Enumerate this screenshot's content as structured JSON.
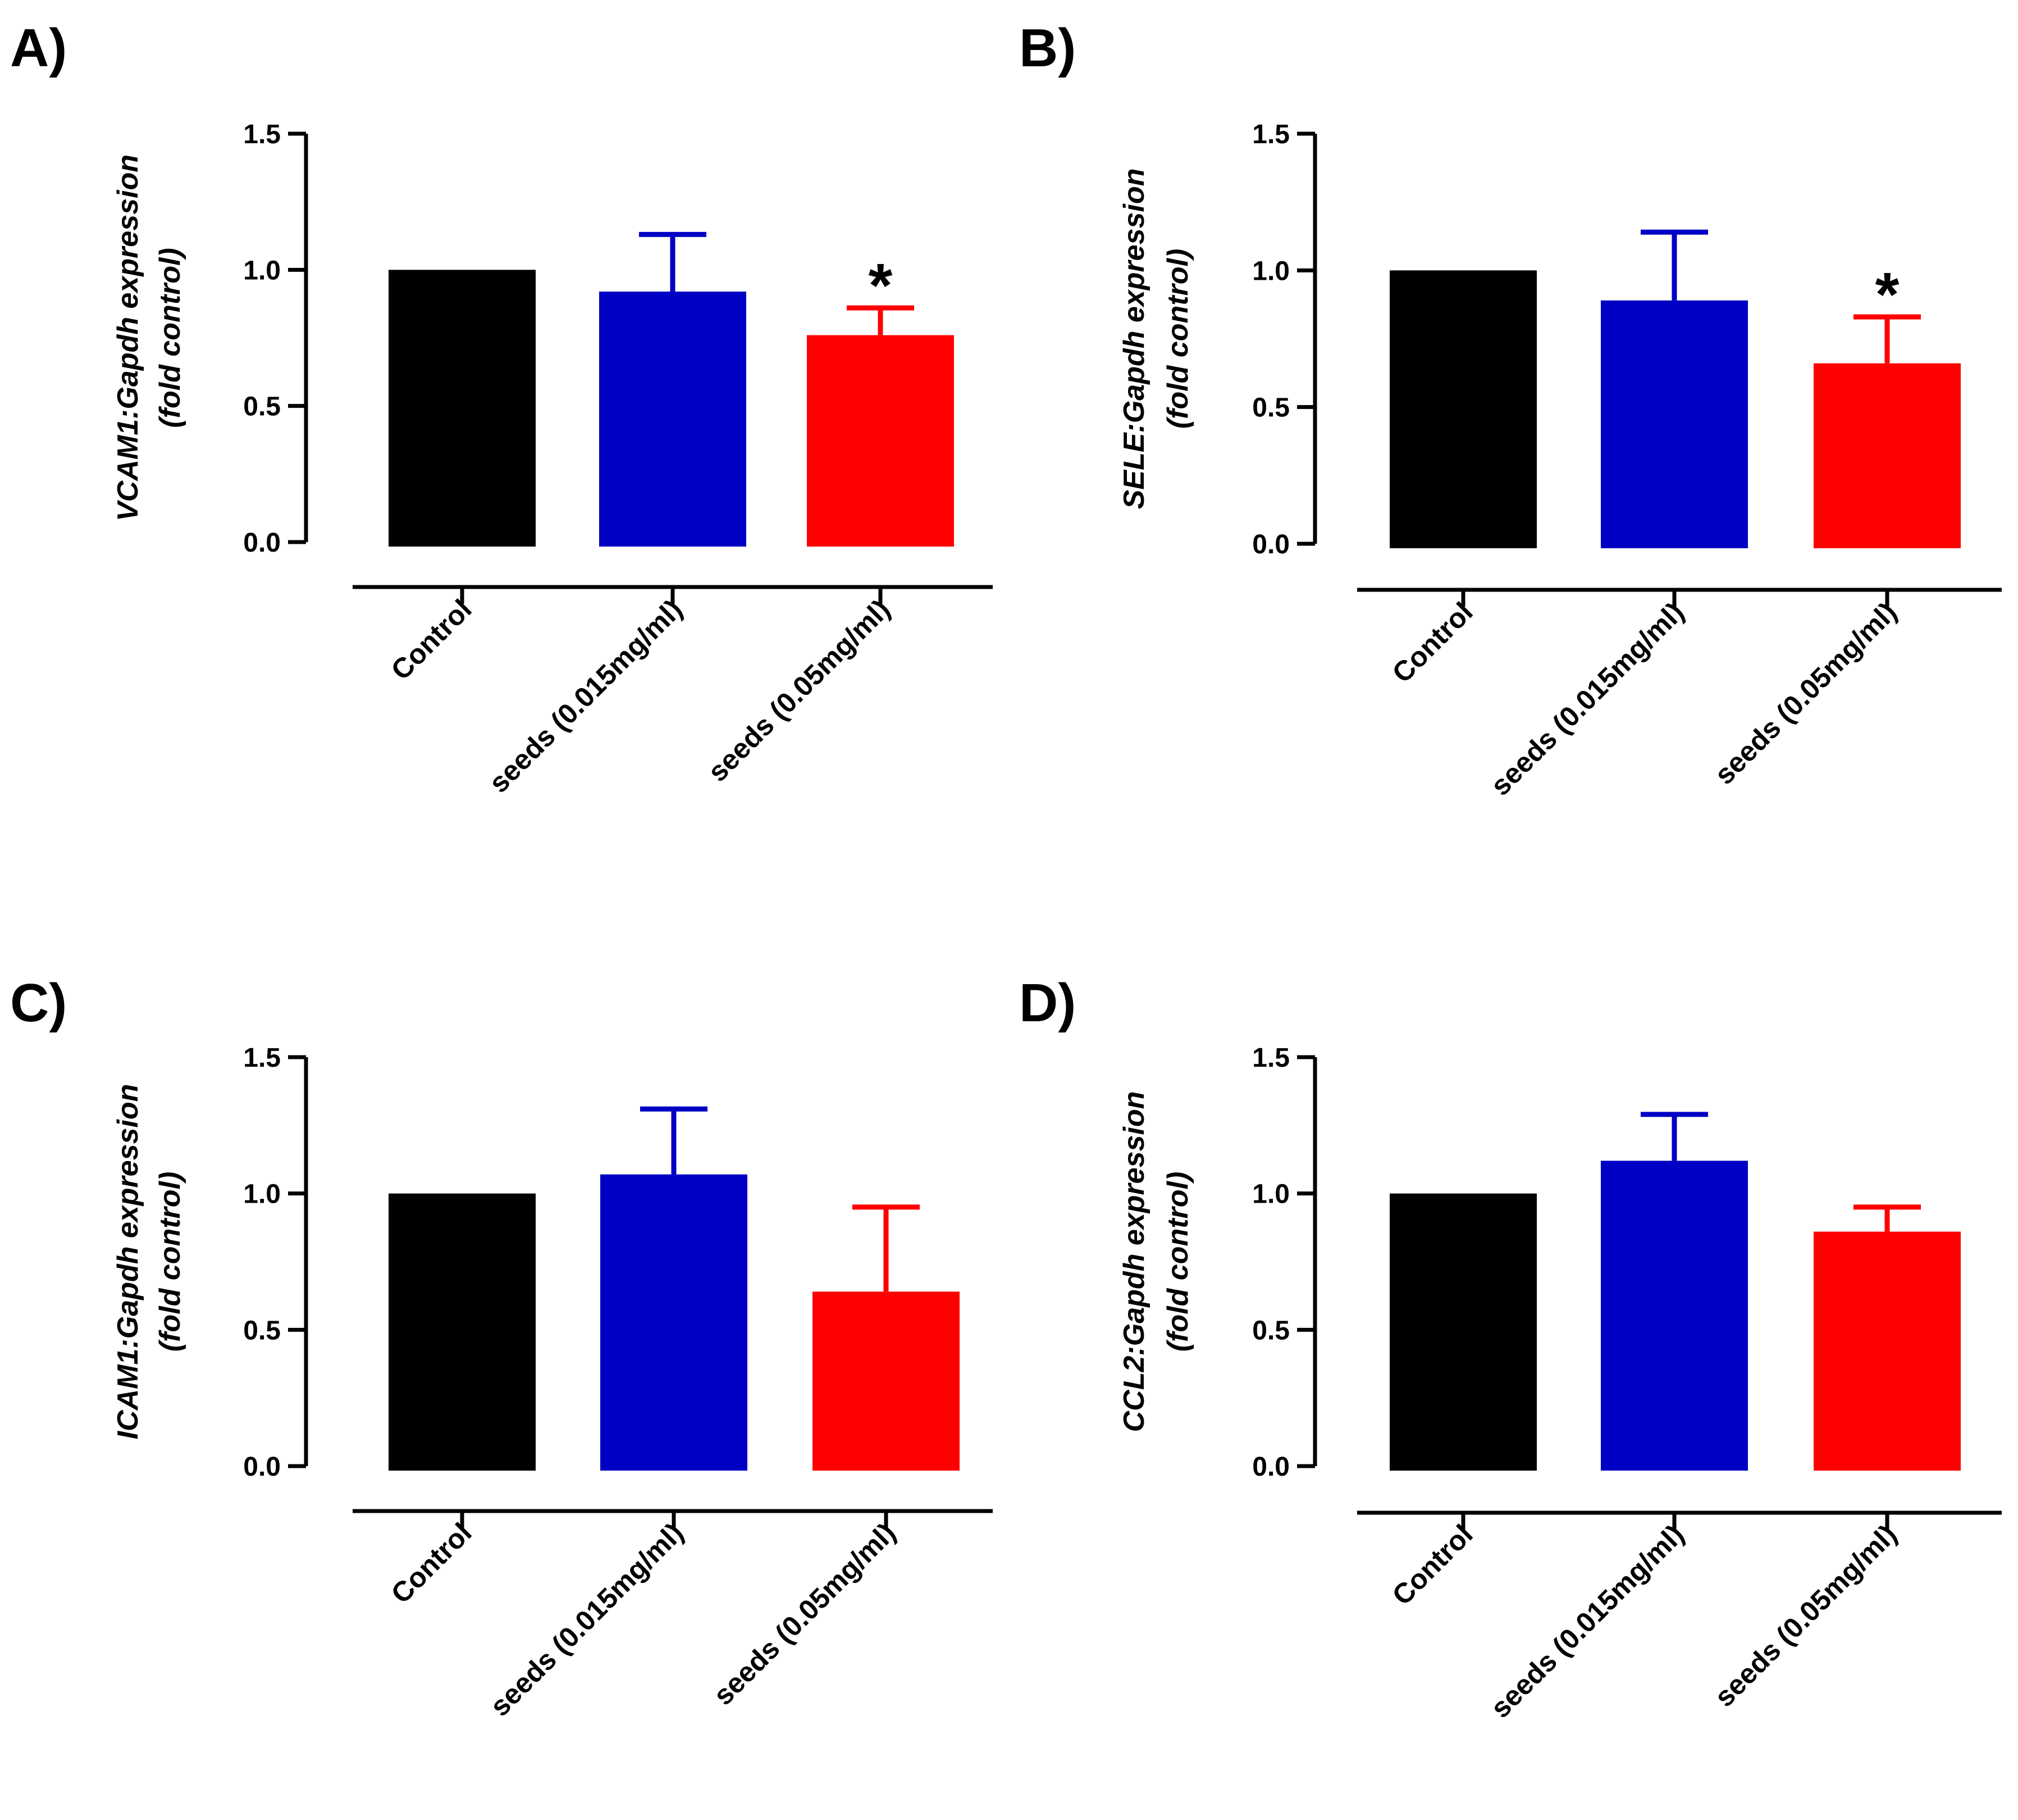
{
  "chart_data": [
    {
      "panel_label": "A)",
      "type": "bar",
      "categories": [
        "Control",
        "seeds (0.015mg/ml)",
        "seeds (0.05mg/ml)"
      ],
      "values": [
        1.0,
        0.92,
        0.76
      ],
      "errors": [
        0.0,
        0.21,
        0.1
      ],
      "colors": [
        "#000000",
        "#0000c4",
        "#ff0000"
      ],
      "significance": [
        "",
        "",
        "*"
      ],
      "ylabel_line1": "VCAM1:Gapdh expression",
      "ylabel_line2": "(fold control)",
      "ylim": [
        0,
        1.5
      ],
      "yticks": [
        "0.0",
        "0.5",
        "1.0",
        "1.5"
      ]
    },
    {
      "panel_label": "B)",
      "type": "bar",
      "categories": [
        "Control",
        "seeds (0.015mg/ml)",
        "seeds (0.05mg/ml)"
      ],
      "values": [
        1.0,
        0.89,
        0.66
      ],
      "errors": [
        0.0,
        0.25,
        0.17
      ],
      "colors": [
        "#000000",
        "#0000c4",
        "#ff0000"
      ],
      "significance": [
        "",
        "",
        "*"
      ],
      "ylabel_line1": "SELE:Gapdh expression",
      "ylabel_line2": "(fold control)",
      "ylim": [
        0,
        1.5
      ],
      "yticks": [
        "0.0",
        "0.5",
        "1.0",
        "1.5"
      ]
    },
    {
      "panel_label": "C)",
      "type": "bar",
      "categories": [
        "Control",
        "seeds (0.015mg/ml)",
        "seeds (0.05mg/ml)"
      ],
      "values": [
        1.0,
        1.07,
        0.64
      ],
      "errors": [
        0.0,
        0.24,
        0.31
      ],
      "colors": [
        "#000000",
        "#0000c4",
        "#ff0000"
      ],
      "significance": [
        "",
        "",
        ""
      ],
      "ylabel_line1": "ICAM1:Gapdh expression",
      "ylabel_line2": "(fold control)",
      "ylim": [
        0,
        1.5
      ],
      "yticks": [
        "0.0",
        "0.5",
        "1.0",
        "1.5"
      ]
    },
    {
      "panel_label": "D)",
      "type": "bar",
      "categories": [
        "Control",
        "seeds (0.015mg/ml)",
        "seeds (0.05mg/ml)"
      ],
      "values": [
        1.0,
        1.12,
        0.86
      ],
      "errors": [
        0.0,
        0.17,
        0.09
      ],
      "colors": [
        "#000000",
        "#0000c4",
        "#ff0000"
      ],
      "significance": [
        "",
        "",
        ""
      ],
      "ylabel_line1": "CCL2:Gapdh expression",
      "ylabel_line2": "(fold control)",
      "ylim": [
        0,
        1.5
      ],
      "yticks": [
        "0.0",
        "0.5",
        "1.0",
        "1.5"
      ]
    }
  ]
}
